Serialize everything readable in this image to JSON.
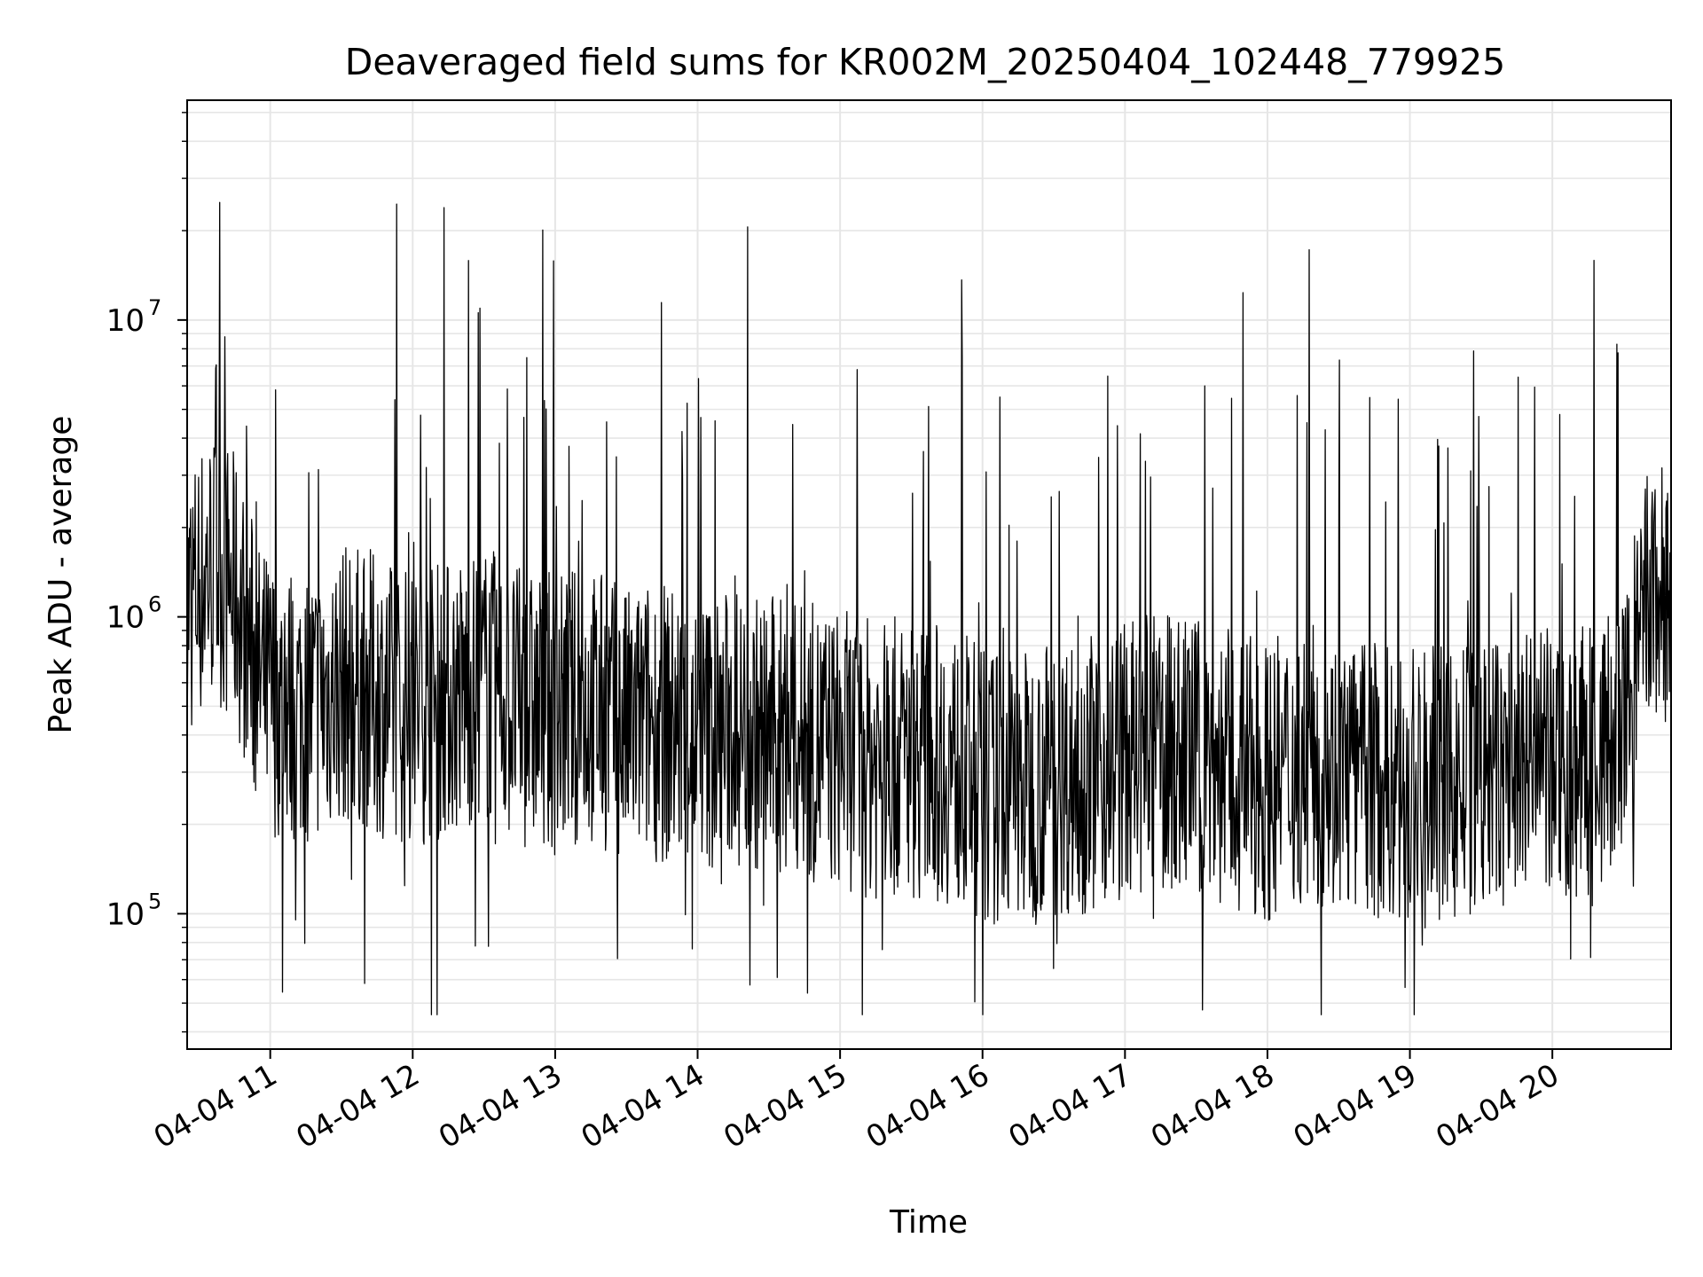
{
  "chart_data": {
    "type": "line",
    "title": "Deaveraged field sums for KR002M_20250404_102448_779925",
    "xlabel": "Time",
    "ylabel": "Peak ADU - average",
    "x_type": "time",
    "xlim": [
      "04-04 10:25",
      "04-04 20:50"
    ],
    "x_ticks": [
      {
        "label": "04-04 11",
        "hour": 11
      },
      {
        "label": "04-04 12",
        "hour": 12
      },
      {
        "label": "04-04 13",
        "hour": 13
      },
      {
        "label": "04-04 14",
        "hour": 14
      },
      {
        "label": "04-04 15",
        "hour": 15
      },
      {
        "label": "04-04 16",
        "hour": 16
      },
      {
        "label": "04-04 17",
        "hour": 17
      },
      {
        "label": "04-04 18",
        "hour": 18
      },
      {
        "label": "04-04 19",
        "hour": 19
      },
      {
        "label": "04-04 20",
        "hour": 20
      }
    ],
    "y_scale": "log",
    "ylim": [
      35000,
      55000000
    ],
    "y_ticks": [
      {
        "base": "10",
        "exp": "5",
        "value": 100000
      },
      {
        "base": "10",
        "exp": "6",
        "value": 1000000
      },
      {
        "base": "10",
        "exp": "7",
        "value": 10000000
      }
    ],
    "grid": true,
    "line_color": "#000000",
    "grid_color": "#e6e6e6",
    "series": [
      {
        "x": [
          "10:25",
          "10:30",
          "10:35",
          "10:40",
          "10:45",
          "10:50",
          "10:55",
          "11:00",
          "11:10",
          "11:20",
          "11:30",
          "11:40",
          "11:50",
          "12:00",
          "12:10",
          "12:20",
          "12:30",
          "12:40",
          "12:50",
          "13:00",
          "13:10",
          "13:20",
          "13:30",
          "13:40",
          "13:50",
          "14:00",
          "14:15",
          "14:30",
          "14:45",
          "15:00",
          "15:15",
          "15:30",
          "15:45",
          "16:00",
          "16:15",
          "16:30",
          "16:45",
          "17:00",
          "17:15",
          "17:30",
          "17:45",
          "18:00",
          "18:15",
          "18:30",
          "18:45",
          "19:00",
          "19:15",
          "19:30",
          "19:45",
          "20:00",
          "20:15",
          "20:30",
          "20:40",
          "20:50"
        ],
        "y": [
          1100000,
          1300000,
          1500000,
          1400000,
          1200000,
          900000,
          600000,
          550000,
          500000,
          520000,
          600000,
          580000,
          520000,
          500000,
          520000,
          550000,
          600000,
          520000,
          480000,
          470000,
          500000,
          480000,
          420000,
          450000,
          430000,
          400000,
          420000,
          400000,
          380000,
          360000,
          330000,
          340000,
          320000,
          270000,
          260000,
          290000,
          300000,
          330000,
          350000,
          340000,
          300000,
          280000,
          320000,
          300000,
          280000,
          260000,
          270000,
          280000,
          300000,
          310000,
          320000,
          400000,
          1100000,
          1200000
        ]
      }
    ],
    "noise_note_free": true
  }
}
